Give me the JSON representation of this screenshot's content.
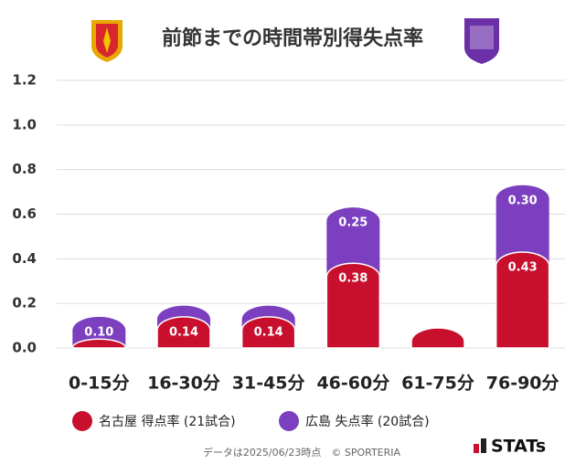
{
  "chart_data": {
    "type": "bar",
    "stacked": true,
    "title": "前節までの時間帯別得失点率",
    "categories": [
      "0-15分",
      "16-30分",
      "31-45分",
      "46-60分",
      "61-75分",
      "76-90分"
    ],
    "series": [
      {
        "name": "名古屋 得点率 (21試合)",
        "color": "#c8102e",
        "values": [
          0.04,
          0.14,
          0.14,
          0.38,
          0.09,
          0.43
        ],
        "value_labels": [
          null,
          "0.14",
          "0.14",
          "0.38",
          null,
          "0.43"
        ]
      },
      {
        "name": "広島 失点率 (20試合)",
        "color": "#7b3fbf",
        "values": [
          0.1,
          0.05,
          0.05,
          0.25,
          0,
          0.3
        ],
        "value_labels": [
          "0.10",
          null,
          null,
          "0.25",
          null,
          "0.30"
        ]
      }
    ],
    "ylim": [
      0,
      1.2
    ],
    "yticks": [
      {
        "value": 0,
        "label": "0.0"
      },
      {
        "value": 0.2,
        "label": "0.2"
      },
      {
        "value": 0.4,
        "label": "0.4"
      },
      {
        "value": 0.6,
        "label": "0.6"
      },
      {
        "value": 0.8,
        "label": "0.8"
      },
      {
        "value": 1,
        "label": "1.0"
      },
      {
        "value": 1.2,
        "label": "1.2"
      }
    ],
    "grid": true,
    "footer": "データは2025/06/23時点　© SPORTERIA",
    "brand": "STATs"
  }
}
